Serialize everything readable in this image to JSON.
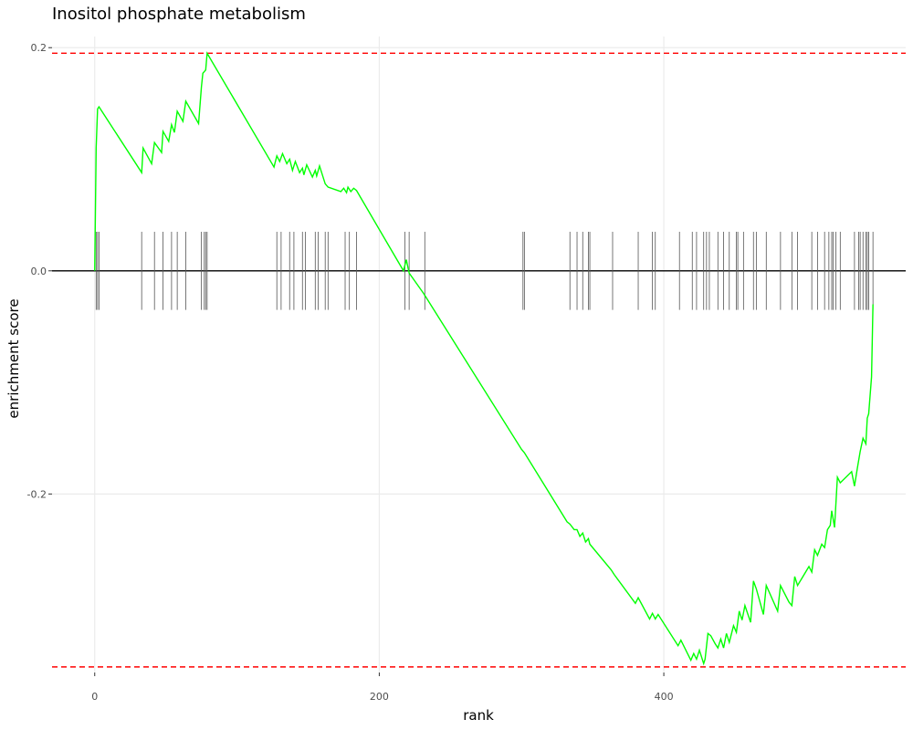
{
  "chart_data": {
    "type": "line",
    "title": "Inositol phosphate metabolism",
    "xlabel": "rank",
    "ylabel": "enrichment score",
    "xlim": [
      -30,
      570
    ],
    "ylim": [
      -0.36,
      0.21
    ],
    "x_ticks": [
      0,
      200,
      400
    ],
    "x_tick_labels": [
      "0",
      "200",
      "400"
    ],
    "y_ticks": [
      -0.2,
      0.0,
      0.2
    ],
    "y_tick_labels": [
      "-0.2",
      "0.0",
      "0.2"
    ],
    "grid": true,
    "colors": {
      "curve": "#00ff00",
      "threshold": "#ff0000",
      "zero_line": "#000000",
      "ticks": "#555555",
      "grid": "#ebebeb"
    },
    "max_es": 0.195,
    "min_es": -0.355,
    "hit_ranks": [
      1,
      2,
      3,
      33,
      42,
      48,
      54,
      58,
      64,
      75,
      77,
      78,
      79,
      128,
      131,
      137,
      140,
      146,
      148,
      155,
      157,
      162,
      164,
      176,
      179,
      184,
      218,
      221,
      232,
      301,
      302,
      334,
      339,
      343,
      347,
      348,
      364,
      382,
      392,
      394,
      411,
      420,
      423,
      428,
      430,
      432,
      438,
      442,
      446,
      451,
      452,
      456,
      463,
      465,
      472,
      482,
      490,
      494,
      504,
      508,
      513,
      516,
      518,
      519,
      521,
      524,
      534,
      537,
      538,
      540,
      542,
      543,
      544,
      547
    ],
    "series": [
      {
        "x": [
          0,
          1,
          2,
          3,
          33,
          34,
          40,
          42,
          47,
          48,
          52,
          54,
          56,
          58,
          62,
          64,
          73,
          75,
          76,
          78,
          79,
          126,
          128,
          130,
          132,
          135,
          137,
          139,
          141,
          144,
          146,
          147,
          149,
          153,
          155,
          156,
          158,
          162,
          164,
          173,
          175,
          177,
          178,
          180,
          182,
          184,
          217,
          219,
          221,
          231,
          233,
          300,
          302,
          332,
          334,
          337,
          339,
          341,
          343,
          345,
          347,
          348,
          363,
          365,
          380,
          382,
          390,
          392,
          394,
          396,
          410,
          412,
          419,
          421,
          423,
          425,
          428,
          429,
          431,
          433,
          436,
          438,
          440,
          442,
          444,
          446,
          449,
          451,
          453,
          455,
          457,
          461,
          463,
          465,
          470,
          472,
          480,
          482,
          488,
          490,
          492,
          494,
          502,
          504,
          506,
          508,
          511,
          513,
          515,
          517,
          518,
          520,
          522,
          524,
          532,
          534,
          536,
          538,
          540,
          542,
          543,
          544,
          546,
          547
        ],
        "y": [
          0.0,
          0.11,
          0.145,
          0.147,
          0.088,
          0.11,
          0.096,
          0.115,
          0.106,
          0.125,
          0.116,
          0.131,
          0.124,
          0.143,
          0.134,
          0.152,
          0.132,
          0.165,
          0.177,
          0.18,
          0.195,
          0.093,
          0.103,
          0.098,
          0.105,
          0.096,
          0.1,
          0.09,
          0.098,
          0.088,
          0.092,
          0.086,
          0.095,
          0.084,
          0.09,
          0.085,
          0.094,
          0.078,
          0.075,
          0.071,
          0.074,
          0.07,
          0.075,
          0.071,
          0.074,
          0.072,
          0.0,
          0.01,
          -0.002,
          -0.02,
          -0.024,
          -0.16,
          -0.163,
          -0.225,
          -0.227,
          -0.232,
          -0.232,
          -0.238,
          -0.235,
          -0.243,
          -0.24,
          -0.245,
          -0.268,
          -0.272,
          -0.298,
          -0.293,
          -0.312,
          -0.307,
          -0.312,
          -0.308,
          -0.336,
          -0.331,
          -0.349,
          -0.343,
          -0.348,
          -0.34,
          -0.352,
          -0.348,
          -0.325,
          -0.327,
          -0.334,
          -0.338,
          -0.33,
          -0.338,
          -0.325,
          -0.333,
          -0.318,
          -0.324,
          -0.305,
          -0.313,
          -0.3,
          -0.315,
          -0.278,
          -0.285,
          -0.308,
          -0.282,
          -0.305,
          -0.282,
          -0.297,
          -0.3,
          -0.274,
          -0.282,
          -0.265,
          -0.27,
          -0.25,
          -0.255,
          -0.245,
          -0.248,
          -0.232,
          -0.228,
          -0.215,
          -0.23,
          -0.185,
          -0.19,
          -0.18,
          -0.193,
          -0.177,
          -0.162,
          -0.15,
          -0.155,
          -0.132,
          -0.128,
          -0.095,
          -0.03
        ]
      }
    ]
  }
}
